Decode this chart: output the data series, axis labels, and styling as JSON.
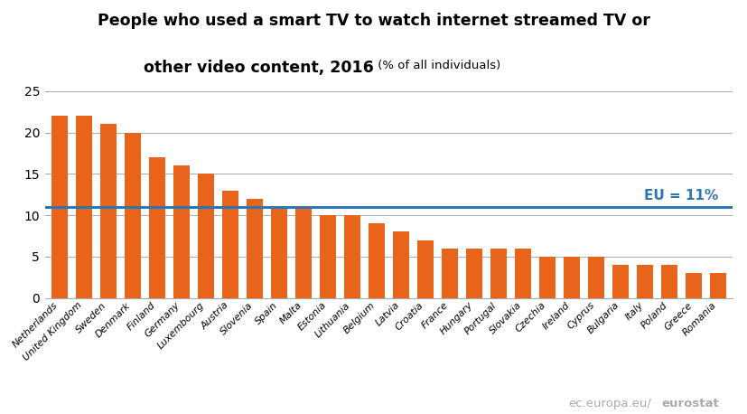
{
  "categories": [
    "Netherlands",
    "United Kingdom",
    "Sweden",
    "Denmark",
    "Finland",
    "Germany",
    "Luxembourg",
    "Austria",
    "Slovenia",
    "Spain",
    "Malta",
    "Estonia",
    "Lithuania",
    "Belgium",
    "Latvia",
    "Croatia",
    "France",
    "Hungary",
    "Portugal",
    "Slovakia",
    "Czechia",
    "Ireland",
    "Cyprus",
    "Bulgaria",
    "Italy",
    "Poland",
    "Greece",
    "Romania"
  ],
  "values": [
    22,
    22,
    21,
    20,
    17,
    16,
    15,
    13,
    12,
    11,
    11,
    10,
    10,
    9,
    8,
    7,
    6,
    6,
    6,
    6,
    5,
    5,
    5,
    4,
    4,
    4,
    3,
    3
  ],
  "bar_color": "#E8641A",
  "eu_line": 11,
  "eu_label": "EU = 11%",
  "eu_line_color": "#2E75B6",
  "title_line1": "People who used a smart TV to watch internet streamed TV or",
  "title_line2_bold": "other video content, 2016",
  "title_line2_small": " (% of all individuals)",
  "ylim": [
    0,
    25
  ],
  "yticks": [
    0,
    5,
    10,
    15,
    20,
    25
  ],
  "background_color": "#FFFFFF",
  "bar_width": 0.65,
  "grid_color": "#AAAAAA",
  "watermark_normal": "ec.europa.eu/",
  "watermark_bold": "eurostat",
  "watermark_color": "#AAAAAA",
  "title_fontsize": 12.5,
  "subtitle_fontsize": 9.5
}
